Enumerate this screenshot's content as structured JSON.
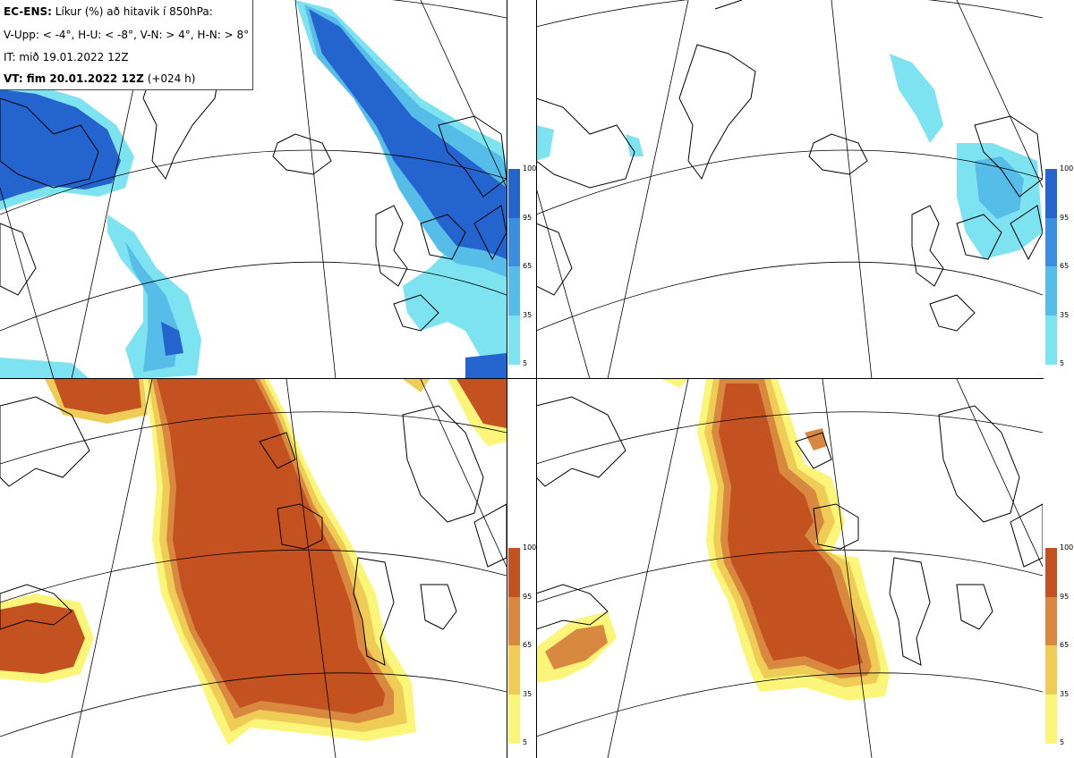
{
  "info": {
    "line1_bold": "EC-ENS:",
    "line1_rest": " Líkur (%) að hitavik í 850hPa:",
    "line2": "V-Upp: < -4°, H-U: < -8°, V-N: > 4°, H-N: > 8°",
    "line3": "IT: mið 19.01.2022 12Z",
    "line4_bold": "VT: fim 20.01.2022 12Z",
    "line4_rest": " (+024 h)"
  },
  "colorbar": {
    "ticks": [
      "100",
      "95",
      "65",
      "35",
      "5"
    ],
    "cold_colors": [
      "#2364cf",
      "#3a8fe0",
      "#56bde8",
      "#7ee3f0"
    ],
    "warm_colors": [
      "#c45220",
      "#d98840",
      "#efcc55",
      "#fbf57a"
    ]
  },
  "panels": [
    {
      "name": "V-Upp",
      "threshold": "< -4°"
    },
    {
      "name": "H-U",
      "threshold": "< -8°"
    },
    {
      "name": "V-N",
      "threshold": "> 4°"
    },
    {
      "name": "H-N",
      "threshold": "> 8°"
    }
  ]
}
